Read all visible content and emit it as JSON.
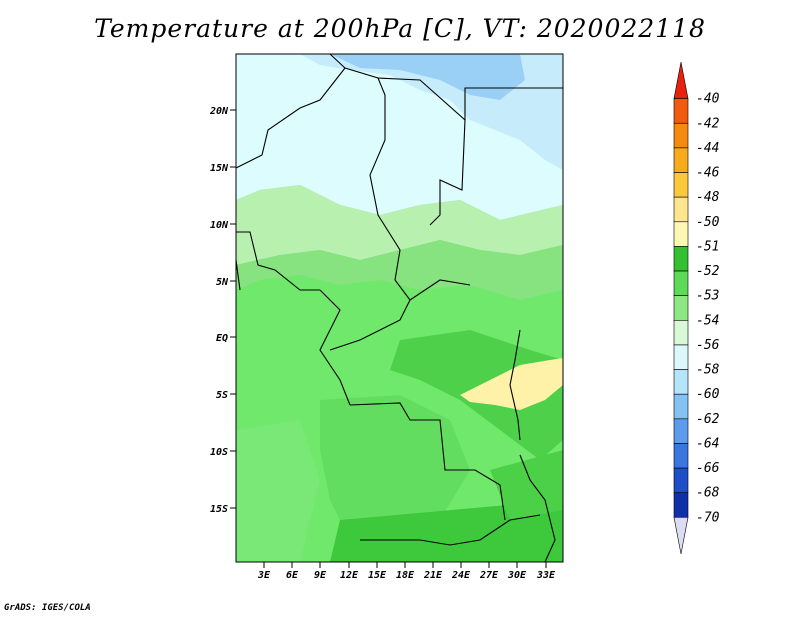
{
  "title": "Temperature at 200hPa [C], VT: 2020022118",
  "footer": "GrADS: IGES/COLA",
  "map": {
    "lat_ticks": [
      "20N",
      "15N",
      "10N",
      "5N",
      "EQ",
      "5S",
      "10S",
      "15S"
    ],
    "lon_ticks": [
      "3E",
      "6E",
      "9E",
      "12E",
      "15E",
      "18E",
      "21E",
      "24E",
      "27E",
      "30E",
      "33E"
    ]
  },
  "colorbar": {
    "labels": [
      "-40",
      "-42",
      "-44",
      "-46",
      "-48",
      "-50",
      "-51",
      "-52",
      "-53",
      "-54",
      "-56",
      "-58",
      "-60",
      "-62",
      "-64",
      "-66",
      "-68",
      "-70"
    ],
    "colors": [
      "#e8200e",
      "#f05b0d",
      "#f48a0f",
      "#f7ab1c",
      "#fbc83c",
      "#fde68f",
      "#fdf7b4",
      "#35c032",
      "#5ed95a",
      "#8ee785",
      "#d7f9d6",
      "#ddf8fc",
      "#b3e4fa",
      "#86c1f3",
      "#5c9cea",
      "#3a76de",
      "#1f4ec9",
      "#1030a8",
      "#0b1c86"
    ]
  }
}
